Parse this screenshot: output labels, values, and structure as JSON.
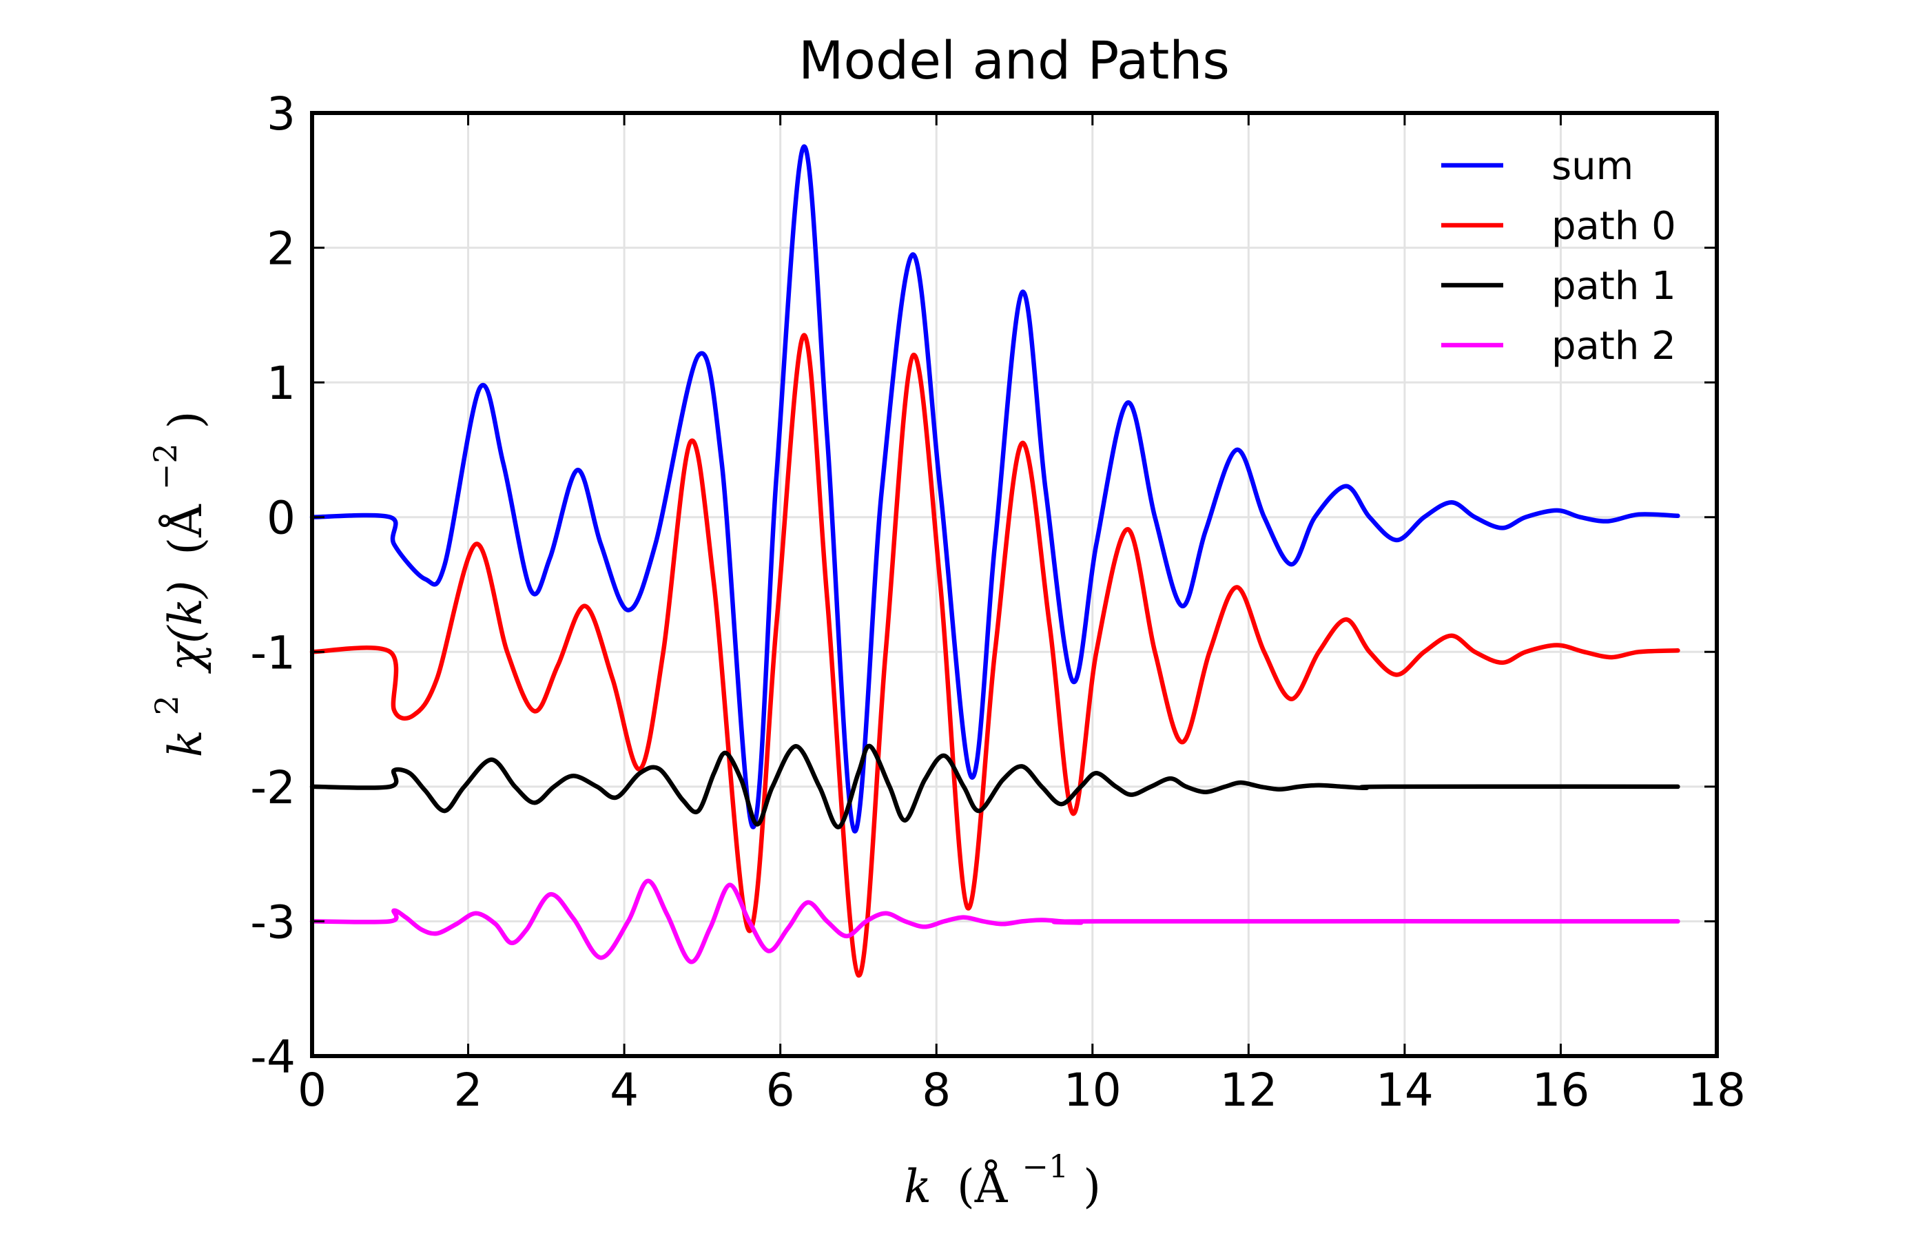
{
  "chart_data": {
    "type": "line",
    "title": "Model and Paths",
    "xlabel": "k (Å^-1)",
    "ylabel": "k^2 χ(k) (Å^-2)",
    "xlim": [
      0,
      18
    ],
    "ylim": [
      -4,
      3
    ],
    "xticks": [
      "0",
      "2",
      "4",
      "6",
      "8",
      "10",
      "12",
      "14",
      "16",
      "18"
    ],
    "yticks": [
      "3",
      "2",
      "1",
      "0",
      "-1",
      "-2",
      "-3",
      "-4"
    ],
    "grid": true,
    "legend_position": "top-right",
    "xlabel_parts": {
      "var": "k",
      "open": "(Å",
      "exp": "−1",
      "close": ")"
    },
    "ylabel_parts": {
      "var": "k",
      "var_exp": "2",
      "fn": "χ(k)",
      "open": "(Å",
      "exp": "−2",
      "close": ")"
    },
    "series": [
      {
        "name": "sum",
        "color": "#0000ff",
        "points": [
          [
            0,
            0
          ],
          [
            1.0,
            0
          ],
          [
            1.05,
            -0.2
          ],
          [
            1.45,
            -0.46
          ],
          [
            1.7,
            -0.35
          ],
          [
            2.15,
            0.96
          ],
          [
            2.45,
            0.4
          ],
          [
            2.8,
            -0.54
          ],
          [
            3.05,
            -0.3
          ],
          [
            3.4,
            0.35
          ],
          [
            3.7,
            -0.2
          ],
          [
            4.05,
            -0.69
          ],
          [
            4.4,
            -0.2
          ],
          [
            4.95,
            1.2
          ],
          [
            5.25,
            0.4
          ],
          [
            5.65,
            -2.3
          ],
          [
            5.95,
            0.3
          ],
          [
            6.3,
            2.75
          ],
          [
            6.6,
            0.6
          ],
          [
            6.95,
            -2.33
          ],
          [
            7.3,
            0.2
          ],
          [
            7.7,
            1.95
          ],
          [
            8.05,
            0.2
          ],
          [
            8.45,
            -1.93
          ],
          [
            8.75,
            -0.2
          ],
          [
            9.1,
            1.67
          ],
          [
            9.4,
            0.2
          ],
          [
            9.75,
            -1.22
          ],
          [
            10.05,
            -0.2
          ],
          [
            10.45,
            0.85
          ],
          [
            10.8,
            0
          ],
          [
            11.15,
            -0.66
          ],
          [
            11.45,
            -0.1
          ],
          [
            11.85,
            0.5
          ],
          [
            12.2,
            0
          ],
          [
            12.55,
            -0.35
          ],
          [
            12.85,
            0
          ],
          [
            13.25,
            0.23
          ],
          [
            13.55,
            0
          ],
          [
            13.9,
            -0.17
          ],
          [
            14.25,
            0
          ],
          [
            14.6,
            0.11
          ],
          [
            14.9,
            0
          ],
          [
            15.25,
            -0.08
          ],
          [
            15.55,
            0
          ],
          [
            15.95,
            0.05
          ],
          [
            16.25,
            0
          ],
          [
            16.6,
            -0.03
          ],
          [
            17.0,
            0.02
          ],
          [
            17.5,
            0.01
          ]
        ]
      },
      {
        "name": "path 0",
        "color": "#ff0000",
        "points": [
          [
            0,
            -1
          ],
          [
            1.0,
            -1
          ],
          [
            1.05,
            -1.43
          ],
          [
            1.3,
            -1.47
          ],
          [
            1.6,
            -1.2
          ],
          [
            2.1,
            -0.2
          ],
          [
            2.5,
            -1.0
          ],
          [
            2.85,
            -1.44
          ],
          [
            3.15,
            -1.1
          ],
          [
            3.5,
            -0.66
          ],
          [
            3.85,
            -1.2
          ],
          [
            4.2,
            -1.87
          ],
          [
            4.5,
            -1.0
          ],
          [
            4.85,
            0.56
          ],
          [
            5.15,
            -0.5
          ],
          [
            5.6,
            -3.07
          ],
          [
            5.95,
            -0.8
          ],
          [
            6.3,
            1.35
          ],
          [
            6.6,
            -0.6
          ],
          [
            7.0,
            -3.4
          ],
          [
            7.35,
            -1.0
          ],
          [
            7.7,
            1.2
          ],
          [
            8.05,
            -0.5
          ],
          [
            8.4,
            -2.9
          ],
          [
            8.75,
            -1.0
          ],
          [
            9.1,
            0.55
          ],
          [
            9.45,
            -0.8
          ],
          [
            9.75,
            -2.2
          ],
          [
            10.05,
            -1.0
          ],
          [
            10.45,
            -0.09
          ],
          [
            10.8,
            -1.0
          ],
          [
            11.15,
            -1.67
          ],
          [
            11.5,
            -1.0
          ],
          [
            11.85,
            -0.52
          ],
          [
            12.2,
            -1.0
          ],
          [
            12.55,
            -1.35
          ],
          [
            12.9,
            -1.0
          ],
          [
            13.25,
            -0.76
          ],
          [
            13.55,
            -1.0
          ],
          [
            13.9,
            -1.17
          ],
          [
            14.25,
            -1.0
          ],
          [
            14.6,
            -0.88
          ],
          [
            14.9,
            -1.0
          ],
          [
            15.25,
            -1.08
          ],
          [
            15.55,
            -1.0
          ],
          [
            15.95,
            -0.95
          ],
          [
            16.3,
            -1.0
          ],
          [
            16.65,
            -1.04
          ],
          [
            17.0,
            -1.0
          ],
          [
            17.5,
            -0.99
          ]
        ]
      },
      {
        "name": "path 1",
        "color": "#000000",
        "points": [
          [
            0,
            -2
          ],
          [
            1.0,
            -2
          ],
          [
            1.05,
            -1.88
          ],
          [
            1.25,
            -1.9
          ],
          [
            1.45,
            -2.03
          ],
          [
            1.7,
            -2.18
          ],
          [
            1.95,
            -2.0
          ],
          [
            2.3,
            -1.8
          ],
          [
            2.6,
            -2.0
          ],
          [
            2.85,
            -2.12
          ],
          [
            3.1,
            -2.0
          ],
          [
            3.35,
            -1.92
          ],
          [
            3.65,
            -2.0
          ],
          [
            3.9,
            -2.08
          ],
          [
            4.2,
            -1.9
          ],
          [
            4.45,
            -1.87
          ],
          [
            4.75,
            -2.1
          ],
          [
            4.95,
            -2.18
          ],
          [
            5.15,
            -1.9
          ],
          [
            5.3,
            -1.75
          ],
          [
            5.5,
            -1.95
          ],
          [
            5.7,
            -2.28
          ],
          [
            5.9,
            -2.0
          ],
          [
            6.2,
            -1.7
          ],
          [
            6.5,
            -2.0
          ],
          [
            6.75,
            -2.3
          ],
          [
            7.0,
            -1.9
          ],
          [
            7.15,
            -1.7
          ],
          [
            7.4,
            -2.0
          ],
          [
            7.6,
            -2.25
          ],
          [
            7.85,
            -1.95
          ],
          [
            8.1,
            -1.77
          ],
          [
            8.35,
            -2.0
          ],
          [
            8.55,
            -2.18
          ],
          [
            8.85,
            -1.95
          ],
          [
            9.1,
            -1.85
          ],
          [
            9.35,
            -2.0
          ],
          [
            9.6,
            -2.13
          ],
          [
            9.85,
            -2.0
          ],
          [
            10.05,
            -1.9
          ],
          [
            10.3,
            -2.0
          ],
          [
            10.5,
            -2.06
          ],
          [
            10.75,
            -2.0
          ],
          [
            11.0,
            -1.94
          ],
          [
            11.2,
            -2.0
          ],
          [
            11.45,
            -2.04
          ],
          [
            11.7,
            -2.0
          ],
          [
            11.9,
            -1.97
          ],
          [
            12.15,
            -2.0
          ],
          [
            12.4,
            -2.02
          ],
          [
            12.65,
            -2.0
          ],
          [
            12.9,
            -1.99
          ],
          [
            13.2,
            -2.0
          ],
          [
            13.5,
            -2.01
          ],
          [
            13.8,
            -2.0
          ],
          [
            17.5,
            -2.0
          ]
        ]
      },
      {
        "name": "path 2",
        "color": "#ff00ff",
        "points": [
          [
            0,
            -3
          ],
          [
            1.0,
            -3
          ],
          [
            1.05,
            -2.92
          ],
          [
            1.2,
            -2.97
          ],
          [
            1.4,
            -3.06
          ],
          [
            1.6,
            -3.09
          ],
          [
            1.85,
            -3.02
          ],
          [
            2.1,
            -2.94
          ],
          [
            2.35,
            -3.02
          ],
          [
            2.55,
            -3.16
          ],
          [
            2.75,
            -3.06
          ],
          [
            3.05,
            -2.8
          ],
          [
            3.35,
            -2.98
          ],
          [
            3.7,
            -3.27
          ],
          [
            4.05,
            -3.0
          ],
          [
            4.3,
            -2.7
          ],
          [
            4.55,
            -2.95
          ],
          [
            4.85,
            -3.3
          ],
          [
            5.1,
            -3.05
          ],
          [
            5.35,
            -2.73
          ],
          [
            5.6,
            -3.0
          ],
          [
            5.85,
            -3.22
          ],
          [
            6.1,
            -3.05
          ],
          [
            6.35,
            -2.86
          ],
          [
            6.6,
            -3.0
          ],
          [
            6.85,
            -3.11
          ],
          [
            7.1,
            -3.0
          ],
          [
            7.35,
            -2.94
          ],
          [
            7.6,
            -3.0
          ],
          [
            7.85,
            -3.04
          ],
          [
            8.1,
            -3.0
          ],
          [
            8.35,
            -2.97
          ],
          [
            8.6,
            -3.0
          ],
          [
            8.85,
            -3.02
          ],
          [
            9.1,
            -3.0
          ],
          [
            9.35,
            -2.99
          ],
          [
            9.6,
            -3.0
          ],
          [
            9.85,
            -3.01
          ],
          [
            10.1,
            -3.0
          ],
          [
            17.5,
            -3.0
          ]
        ]
      }
    ]
  }
}
